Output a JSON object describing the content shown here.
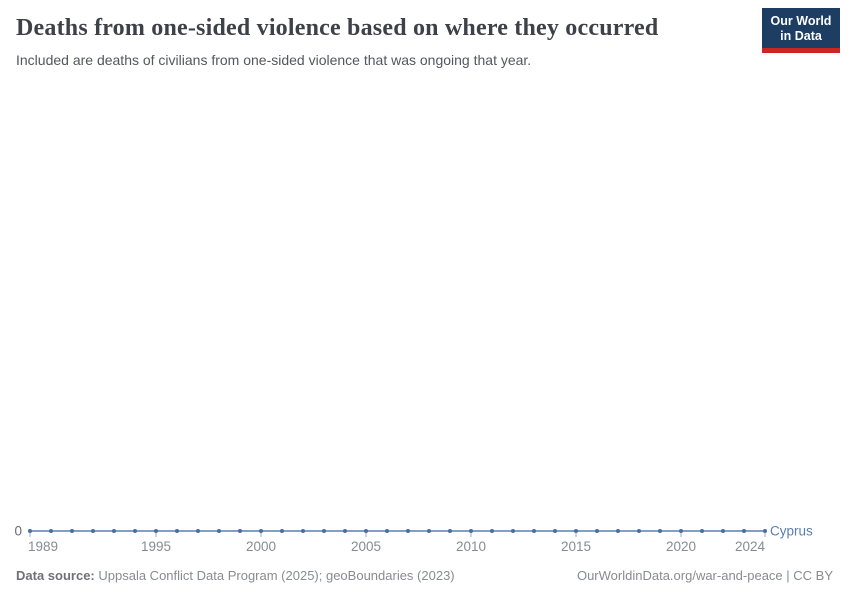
{
  "header": {
    "title": "Deaths from one-sided violence based on where they occurred",
    "subtitle": "Included are deaths of civilians from one-sided violence that was ongoing that year.",
    "logo": {
      "line1": "Our World",
      "line2": "in Data",
      "bg_color": "#1d3d63",
      "accent_color": "#cb2622"
    }
  },
  "chart_data": {
    "type": "line",
    "title": "Deaths from one-sided violence based on where they occurred",
    "xlabel": "",
    "ylabel": "",
    "xlim": [
      1989,
      2024
    ],
    "x_ticks": [
      1989,
      1995,
      2000,
      2005,
      2010,
      2015,
      2020,
      2024
    ],
    "y_ticks": [
      0
    ],
    "grid": false,
    "legend_position": "end-of-line",
    "series": [
      {
        "name": "Cyprus",
        "color": "#5b7eb0",
        "marker_color": "#4a6ea3",
        "x": [
          1989,
          1990,
          1991,
          1992,
          1993,
          1994,
          1995,
          1996,
          1997,
          1998,
          1999,
          2000,
          2001,
          2002,
          2003,
          2004,
          2005,
          2006,
          2007,
          2008,
          2009,
          2010,
          2011,
          2012,
          2013,
          2014,
          2015,
          2016,
          2017,
          2018,
          2019,
          2020,
          2021,
          2022,
          2023,
          2024
        ],
        "values": [
          0,
          0,
          0,
          0,
          0,
          0,
          0,
          0,
          0,
          0,
          0,
          0,
          0,
          0,
          0,
          0,
          0,
          0,
          0,
          0,
          0,
          0,
          0,
          0,
          0,
          0,
          0,
          0,
          0,
          0,
          0,
          0,
          0,
          0,
          0,
          0
        ]
      }
    ],
    "axis_text_color": "#878c91",
    "zero_label_color": "#67696c",
    "tick_mark_color": "#a7acb1"
  },
  "footer": {
    "source_label": "Data source:",
    "source_text": "Uppsala Conflict Data Program (2025); geoBoundaries (2023)",
    "credit": "OurWorldinData.org/war-and-peace | CC BY"
  }
}
